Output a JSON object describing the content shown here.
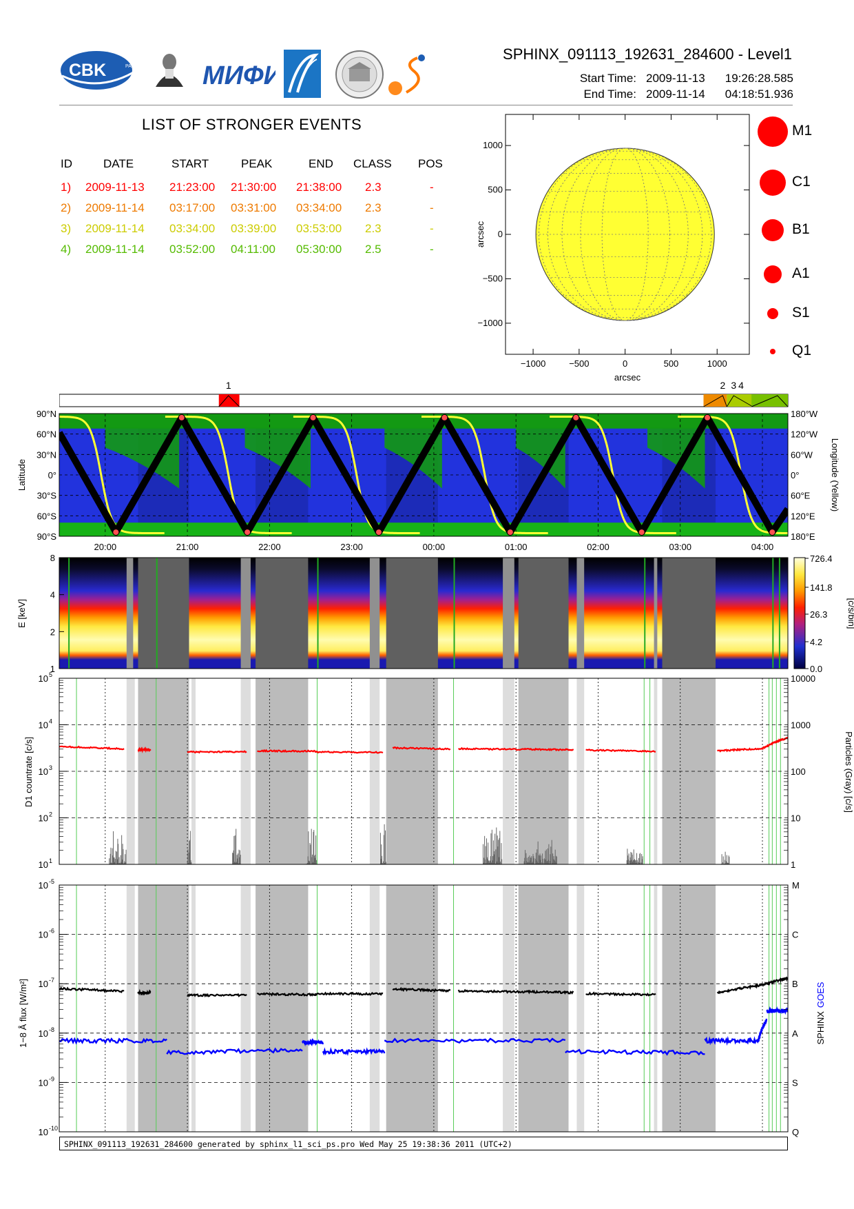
{
  "header": {
    "title": "SPHINX_091113_192631_284600 - Level1",
    "start_label": "Start Time:",
    "start_date": "2009-11-13",
    "start_time": "19:26:28.585",
    "end_label": "End Time:",
    "end_date": "2009-11-14",
    "end_time": "04:18:51.936",
    "logos": [
      {
        "name": "cbk-logo",
        "text": "CBK",
        "subtext": "PAN"
      },
      {
        "name": "lebedev-institute-logo",
        "text": "P.N.Lebedev Physical Institute of the Russian Academy of Science"
      },
      {
        "name": "mifi-logo",
        "text": "МИФИ"
      },
      {
        "name": "comet-logo"
      },
      {
        "name": "seal-logo"
      },
      {
        "name": "sun-orbit-logo"
      }
    ]
  },
  "events": {
    "title": "LIST OF STRONGER EVENTS",
    "columns": [
      "ID",
      "DATE",
      "START",
      "PEAK",
      "END",
      "CLASS",
      "POS"
    ],
    "rows": [
      {
        "id": "1)",
        "date": "2009-11-13",
        "start": "21:23:00",
        "peak": "21:30:00",
        "end": "21:38:00",
        "class": "2.3",
        "pos": "-",
        "color": "#ff0000"
      },
      {
        "id": "2)",
        "date": "2009-11-14",
        "start": "03:17:00",
        "peak": "03:31:00",
        "end": "03:34:00",
        "class": "2.3",
        "pos": "-",
        "color": "#ee7a00"
      },
      {
        "id": "3)",
        "date": "2009-11-14",
        "start": "03:34:00",
        "peak": "03:39:00",
        "end": "03:53:00",
        "class": "2.3",
        "pos": "-",
        "color": "#cccc00"
      },
      {
        "id": "4)",
        "date": "2009-11-14",
        "start": "03:52:00",
        "peak": "04:11:00",
        "end": "05:30:00",
        "class": "2.5",
        "pos": "-",
        "color": "#55bb00"
      }
    ]
  },
  "sun_map": {
    "xlabel": "arcsec",
    "ylabel": "arcsec",
    "xticks": [
      "−1000",
      "−500",
      "0",
      "500",
      "1000"
    ],
    "yticks": [
      "1000",
      "500",
      "0",
      "−500",
      "−1000"
    ],
    "disk_color": "#ffff33"
  },
  "class_legend": [
    {
      "label": "M1"
    },
    {
      "label": "C1"
    },
    {
      "label": "B1"
    },
    {
      "label": "A1"
    },
    {
      "label": "S1"
    },
    {
      "label": "Q1"
    }
  ],
  "event_bar": {
    "labels": [
      "1",
      "2",
      "3",
      "4"
    ]
  },
  "time_ticks": [
    "20:00",
    "21:00",
    "22:00",
    "23:00",
    "00:00",
    "01:00",
    "02:00",
    "03:00",
    "04:00"
  ],
  "orbit_panel": {
    "ylabel": "Latitude",
    "y2label": "Longitude (Yellow)",
    "lat_ticks": [
      "90°N",
      "60°N",
      "30°N",
      "0°",
      "30°S",
      "60°S",
      "90°S"
    ],
    "lon_ticks": [
      "180°W",
      "120°W",
      "60°W",
      "0°",
      "60°E",
      "120°E",
      "180°E"
    ]
  },
  "spectrogram": {
    "ylabel": "E [keV]",
    "yticks": [
      "8",
      "4",
      "2",
      "1"
    ],
    "colorbar_label": "[c/s/bin]",
    "colorbar_ticks": [
      "726.4",
      "141.8",
      "26.3",
      "4.2",
      "0.0"
    ]
  },
  "countrate_panel": {
    "ylabel": "D1 countrate [c/s]",
    "y2label": "Particles (Gray) [c/s]",
    "yticks_left": [
      "10",
      "10",
      "10",
      "10",
      "10"
    ],
    "yticks_left_exp": [
      "5",
      "4",
      "3",
      "2",
      "1"
    ],
    "yticks_right": [
      "10000",
      "1000",
      "100",
      "10",
      "1"
    ]
  },
  "flux_panel": {
    "ylabel": "1−8 Å flux [W/m²]",
    "y2label_sphinx": "SPHINX",
    "y2label_goes": "GOES",
    "yticks_exp": [
      "-5",
      "-6",
      "-7",
      "-8",
      "-9",
      "-10"
    ],
    "class_ticks": [
      "M",
      "C",
      "B",
      "A",
      "S",
      "Q"
    ]
  },
  "footer": "SPHINX_091113_192631_284600 generated by sphinx_l1_sci_ps.pro Wed May 25 19:38:36 2011 (UTC+2)",
  "chart_data": [
    {
      "type": "scatter",
      "title": "",
      "xlabel": "arcsec",
      "ylabel": "arcsec",
      "xlim": [
        -1300,
        1350
      ],
      "ylim": [
        -1350,
        1350
      ],
      "series": [
        {
          "name": "",
          "values": []
        }
      ],
      "solar_disk_radius_arcsec": 970
    },
    {
      "type": "line",
      "title": "",
      "ylabel": "Latitude",
      "x_unit": "UT hours (2009-11-13 19:26 to 2009-11-14 04:19)",
      "xlim": [
        19.44,
        28.31
      ],
      "ylim": [
        -90,
        90
      ],
      "lat_extrema": [
        {
          "t": 19.44,
          "lat": 62
        },
        {
          "t": 20.13,
          "lat": -84
        },
        {
          "t": 20.93,
          "lat": 84
        },
        {
          "t": 21.73,
          "lat": -84
        },
        {
          "t": 22.53,
          "lat": 84
        },
        {
          "t": 23.33,
          "lat": -84
        },
        {
          "t": 24.13,
          "lat": 84
        },
        {
          "t": 24.93,
          "lat": -84
        },
        {
          "t": 25.73,
          "lat": 84
        },
        {
          "t": 26.53,
          "lat": -84
        },
        {
          "t": 27.33,
          "lat": 84
        },
        {
          "t": 28.12,
          "lat": -84
        },
        {
          "t": 28.31,
          "lat": -50
        }
      ],
      "lon_crossings_t": [
        19.95,
        21.5,
        23.06,
        24.62,
        26.18,
        27.74
      ]
    },
    {
      "type": "heatmap",
      "ylabel": "E [keV]",
      "ylim": [
        1,
        8
      ],
      "colorbar": [
        0.0,
        4.2,
        26.3,
        141.8,
        726.4
      ],
      "data_gaps_t": [
        [
          20.26,
          20.34
        ],
        [
          20.4,
          21.02
        ],
        [
          21.65,
          21.77
        ],
        [
          21.83,
          22.47
        ],
        [
          23.22,
          23.34
        ],
        [
          23.42,
          24.05
        ],
        [
          24.84,
          24.98
        ],
        [
          25.03,
          25.64
        ],
        [
          25.74,
          25.83
        ],
        [
          26.68,
          26.72
        ],
        [
          26.78,
          27.43
        ]
      ]
    },
    {
      "type": "line",
      "ylabel": "D1 countrate [c/s]",
      "y2label": "Particles (Gray) [c/s]",
      "ylim": [
        10,
        100000
      ],
      "y_scale": "log",
      "series": [
        {
          "name": "D1 countrate",
          "color": "#ff0000",
          "segments": [
            {
              "t": [
                19.44,
                20.23
              ],
              "y": [
                3400,
                3050
              ]
            },
            {
              "t": [
                20.4,
                20.55
              ],
              "y": [
                2900,
                2900
              ]
            },
            {
              "t": [
                21.0,
                21.72
              ],
              "y": [
                2600,
                2650
              ]
            },
            {
              "t": [
                21.85,
                22.58
              ],
              "y": [
                2750,
                2700
              ]
            },
            {
              "t": [
                22.55,
                23.38
              ],
              "y": [
                2600,
                2550
              ]
            },
            {
              "t": [
                23.5,
                24.2
              ],
              "y": [
                3200,
                3000
              ]
            },
            {
              "t": [
                24.3,
                25.1
              ],
              "y": [
                3050,
                2950
              ]
            },
            {
              "t": [
                25.1,
                25.7
              ],
              "y": [
                3000,
                2900
              ]
            },
            {
              "t": [
                25.85,
                26.7
              ],
              "y": [
                2850,
                2700
              ]
            },
            {
              "t": [
                27.45,
                28.0
              ],
              "y": [
                2750,
                3100
              ]
            },
            {
              "t": [
                28.0,
                28.31
              ],
              "y": [
                3100,
                5300
              ]
            }
          ]
        }
      ]
    },
    {
      "type": "line",
      "ylabel": "1−8 Å flux [W/m²]",
      "ylim": [
        1e-10,
        1e-05
      ],
      "y_scale": "log",
      "series": [
        {
          "name": "SPHINX",
          "color": "#000000",
          "segments": [
            {
              "t": [
                19.44,
                20.23
              ],
              "y": [
                8e-08,
                7e-08
              ]
            },
            {
              "t": [
                20.4,
                20.55
              ],
              "y": [
                6.6e-08,
                6.6e-08
              ]
            },
            {
              "t": [
                21.0,
                21.72
              ],
              "y": [
                5.8e-08,
                5.9e-08
              ]
            },
            {
              "t": [
                21.85,
                22.58
              ],
              "y": [
                6.2e-08,
                6e-08
              ]
            },
            {
              "t": [
                22.55,
                23.38
              ],
              "y": [
                6.3e-08,
                6.2e-08
              ]
            },
            {
              "t": [
                23.5,
                24.2
              ],
              "y": [
                7.8e-08,
                7.2e-08
              ]
            },
            {
              "t": [
                24.3,
                25.1
              ],
              "y": [
                7.2e-08,
                6.8e-08
              ]
            },
            {
              "t": [
                25.1,
                25.7
              ],
              "y": [
                6.9e-08,
                6.6e-08
              ]
            },
            {
              "t": [
                25.85,
                26.7
              ],
              "y": [
                6.3e-08,
                6e-08
              ]
            },
            {
              "t": [
                27.45,
                28.0
              ],
              "y": [
                6.5e-08,
                9.5e-08
              ]
            },
            {
              "t": [
                28.0,
                28.31
              ],
              "y": [
                9.5e-08,
                1.3e-07
              ]
            }
          ]
        },
        {
          "name": "GOES",
          "color": "#0000ff",
          "segments": [
            {
              "t": [
                19.44,
                20.75
              ],
              "y": [
                7e-09,
                7e-09
              ]
            },
            {
              "t": [
                20.75,
                22.4
              ],
              "y": [
                4e-09,
                4.5e-09
              ]
            },
            {
              "t": [
                22.4,
                22.65
              ],
              "y": [
                6.5e-09,
                6.5e-09
              ]
            },
            {
              "t": [
                22.65,
                23.4
              ],
              "y": [
                4.2e-09,
                4.2e-09
              ]
            },
            {
              "t": [
                23.4,
                25.6
              ],
              "y": [
                7e-09,
                7e-09
              ]
            },
            {
              "t": [
                25.6,
                27.3
              ],
              "y": [
                4.2e-09,
                4e-09
              ]
            },
            {
              "t": [
                27.3,
                27.95
              ],
              "y": [
                7e-09,
                7e-09
              ]
            },
            {
              "t": [
                27.95,
                28.05
              ],
              "y": [
                7e-09,
                1.8e-08
              ]
            },
            {
              "t": [
                28.05,
                28.31
              ],
              "y": [
                2.8e-08,
                2.9e-08
              ]
            }
          ]
        }
      ]
    }
  ]
}
